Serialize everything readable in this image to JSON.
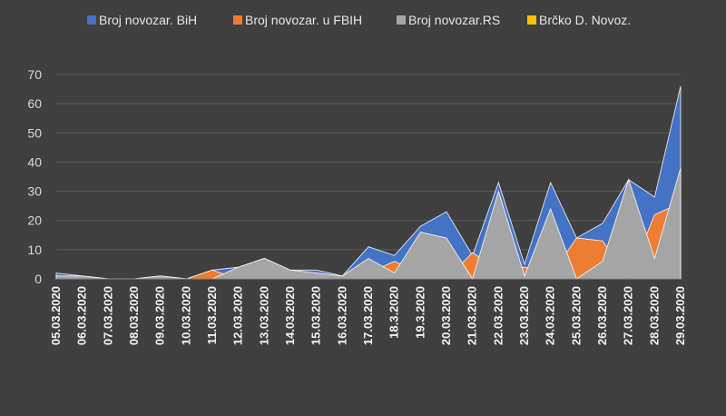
{
  "chart_data": {
    "type": "area",
    "categories": [
      "05.03.2020",
      "06.03.2020",
      "07.03.2020",
      "08.03.2020",
      "09.03.2020",
      "10.03.2020",
      "11.03.2020",
      "12.03.2020",
      "13.03.2020",
      "14.03.2020",
      "15.03.2020",
      "16.03.2020",
      "17.03.2020",
      "18.3.2020",
      "19.3.2020",
      "20.03.2020",
      "21.03.2020",
      "22.03.2020",
      "23.03.2020",
      "24.03.2020",
      "25.03.2020",
      "26.03.2020",
      "27.03.2020",
      "28.03.2020",
      "29.03.2020"
    ],
    "series": [
      {
        "name": "Broj  novozar. BiH",
        "color": "#4472c4",
        "values": [
          2,
          1,
          0,
          0,
          1,
          0,
          3,
          4,
          7,
          3,
          3,
          1,
          11,
          8,
          18,
          23,
          8,
          33,
          5,
          33,
          14,
          19,
          34,
          28,
          66
        ]
      },
      {
        "name": "Broj novozar. u FBIH",
        "color": "#ed7d31",
        "values": [
          1,
          0,
          0,
          0,
          0,
          0,
          3,
          0,
          0,
          0,
          1,
          0,
          2,
          6,
          2,
          0,
          9,
          3,
          4,
          1,
          14,
          13,
          0,
          22,
          26
        ]
      },
      {
        "name": "Broj novozar.RS",
        "color": "#a5a5a5",
        "values": [
          1,
          1,
          0,
          0,
          1,
          0,
          0,
          4,
          7,
          3,
          2,
          1,
          7,
          2,
          16,
          14,
          0,
          30,
          1,
          24,
          0,
          6,
          34,
          7,
          38
        ]
      },
      {
        "name": "Brčko D. Novoz.",
        "color": "#ffc000",
        "values": [
          0,
          0,
          0,
          0,
          0,
          0,
          0,
          0,
          0,
          0,
          0,
          0,
          0,
          0,
          0,
          0,
          0,
          0,
          0,
          0,
          0,
          0,
          0,
          0,
          0
        ]
      }
    ],
    "yticks": [
      "0",
      "10",
      "20",
      "30",
      "40",
      "50",
      "60",
      "70"
    ],
    "ylim": [
      0,
      70
    ],
    "grid": true,
    "legend_position": "top"
  }
}
